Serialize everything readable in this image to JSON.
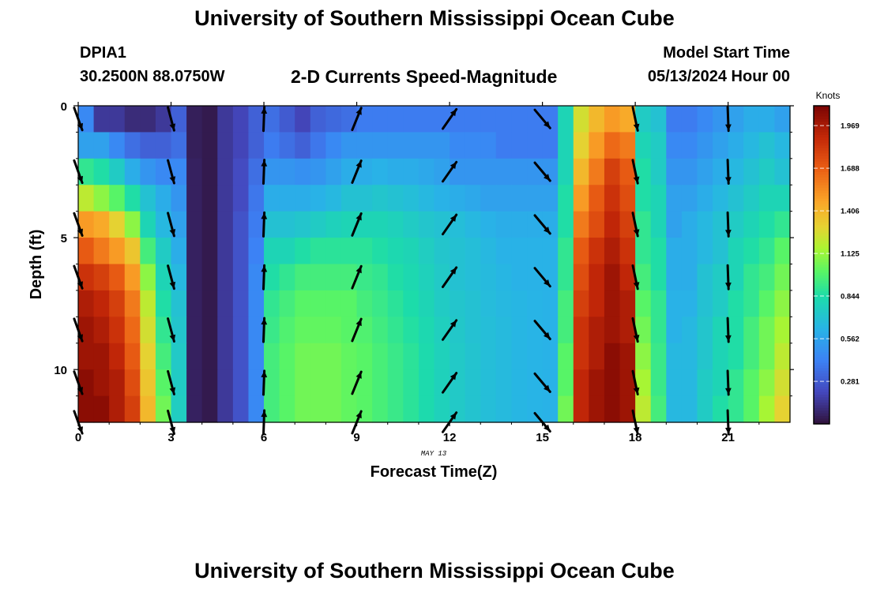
{
  "header": {
    "title": "University of Southern Mississippi Ocean Cube",
    "station": "DPIA1",
    "coords": "30.2500N  88.0750W",
    "plot_title": "2-D Currents Speed-Magnitude",
    "model_start_label": "Model Start Time",
    "model_start": "05/13/2024 Hour 00",
    "footer_title": "University of Southern Mississippi Ocean Cube"
  },
  "chart_data": {
    "type": "heatmap",
    "xlabel": "Forecast Time(Z)",
    "ylabel": "Depth (ft)",
    "date_label": "MAY 13",
    "colorbar_label": "Knots",
    "x_ticks": [
      0,
      3,
      6,
      9,
      12,
      15,
      18,
      21
    ],
    "y_ticks": [
      0,
      5,
      10
    ],
    "xlim": [
      0,
      23
    ],
    "ylim": [
      12,
      0
    ],
    "colorbar_ticks": [
      "0.281",
      "0.562",
      "0.844",
      "1.125",
      "1.406",
      "1.688",
      "1.969"
    ],
    "colorbar_range": [
      0,
      2.1
    ],
    "hours": [
      0,
      0.5,
      1,
      1.5,
      2,
      2.5,
      3,
      3.5,
      4,
      4.5,
      5,
      5.5,
      6,
      6.5,
      7,
      7.5,
      8,
      8.5,
      9,
      9.5,
      10,
      10.5,
      11,
      11.5,
      12,
      12.5,
      13,
      13.5,
      14,
      14.5,
      15,
      15.5,
      16,
      16.5,
      17,
      17.5,
      18,
      18.5,
      19,
      19.5,
      20,
      20.5,
      21,
      21.5,
      22,
      22.5
    ],
    "depths": [
      0,
      1,
      2,
      3,
      4,
      5,
      6,
      7,
      8,
      9,
      10,
      11,
      12
    ],
    "speed": [
      [
        0.45,
        0.15,
        0.15,
        0.1,
        0.1,
        0.15,
        0.3,
        0.05,
        0.03,
        0.15,
        0.2,
        0.3,
        0.35,
        0.28,
        0.2,
        0.3,
        0.33,
        0.35,
        0.4,
        0.4,
        0.4,
        0.4,
        0.4,
        0.4,
        0.4,
        0.4,
        0.4,
        0.4,
        0.4,
        0.4,
        0.4,
        0.8,
        1.25,
        1.4,
        1.5,
        1.45,
        0.75,
        0.7,
        0.4,
        0.4,
        0.45,
        0.5,
        0.55,
        0.6,
        0.6,
        0.55
      ],
      [
        0.55,
        0.55,
        0.45,
        0.35,
        0.3,
        0.3,
        0.35,
        0.05,
        0.03,
        0.15,
        0.2,
        0.3,
        0.4,
        0.35,
        0.3,
        0.38,
        0.45,
        0.5,
        0.5,
        0.5,
        0.5,
        0.5,
        0.5,
        0.5,
        0.45,
        0.45,
        0.45,
        0.4,
        0.4,
        0.4,
        0.4,
        0.8,
        1.3,
        1.5,
        1.65,
        1.6,
        0.8,
        0.75,
        0.45,
        0.45,
        0.5,
        0.55,
        0.6,
        0.65,
        0.7,
        0.65
      ],
      [
        0.9,
        0.85,
        0.75,
        0.6,
        0.5,
        0.45,
        0.45,
        0.06,
        0.03,
        0.15,
        0.22,
        0.35,
        0.5,
        0.5,
        0.48,
        0.5,
        0.55,
        0.6,
        0.6,
        0.62,
        0.6,
        0.6,
        0.58,
        0.55,
        0.5,
        0.5,
        0.5,
        0.5,
        0.5,
        0.5,
        0.5,
        0.8,
        1.4,
        1.6,
        1.8,
        1.7,
        0.85,
        0.75,
        0.5,
        0.5,
        0.55,
        0.6,
        0.65,
        0.7,
        0.75,
        0.7
      ],
      [
        1.2,
        1.1,
        1.0,
        0.85,
        0.7,
        0.6,
        0.5,
        0.06,
        0.03,
        0.15,
        0.22,
        0.38,
        0.6,
        0.6,
        0.6,
        0.62,
        0.65,
        0.7,
        0.7,
        0.72,
        0.7,
        0.68,
        0.65,
        0.62,
        0.6,
        0.58,
        0.55,
        0.55,
        0.55,
        0.55,
        0.55,
        0.85,
        1.5,
        1.7,
        1.85,
        1.75,
        0.85,
        0.8,
        0.55,
        0.55,
        0.6,
        0.65,
        0.7,
        0.75,
        0.8,
        0.8
      ],
      [
        1.5,
        1.45,
        1.3,
        1.1,
        0.8,
        0.65,
        0.55,
        0.06,
        0.03,
        0.15,
        0.25,
        0.4,
        0.7,
        0.7,
        0.72,
        0.75,
        0.78,
        0.8,
        0.8,
        0.8,
        0.78,
        0.75,
        0.72,
        0.7,
        0.68,
        0.65,
        0.62,
        0.6,
        0.6,
        0.6,
        0.6,
        0.85,
        1.6,
        1.75,
        1.9,
        1.8,
        0.9,
        0.8,
        0.55,
        0.6,
        0.65,
        0.7,
        0.75,
        0.8,
        0.85,
        0.9
      ],
      [
        1.7,
        1.6,
        1.5,
        1.35,
        0.95,
        0.75,
        0.6,
        0.06,
        0.03,
        0.15,
        0.25,
        0.42,
        0.8,
        0.8,
        0.85,
        0.88,
        0.88,
        0.88,
        0.88,
        0.85,
        0.82,
        0.8,
        0.76,
        0.72,
        0.7,
        0.68,
        0.65,
        0.62,
        0.62,
        0.62,
        0.62,
        0.9,
        1.7,
        1.85,
        1.95,
        1.85,
        0.9,
        0.85,
        0.6,
        0.6,
        0.65,
        0.7,
        0.8,
        0.85,
        0.9,
        1.0
      ],
      [
        1.85,
        1.8,
        1.7,
        1.5,
        1.1,
        0.8,
        0.65,
        0.06,
        0.03,
        0.15,
        0.25,
        0.45,
        0.85,
        0.9,
        0.95,
        0.95,
        0.95,
        0.95,
        0.92,
        0.9,
        0.85,
        0.82,
        0.78,
        0.74,
        0.7,
        0.68,
        0.66,
        0.64,
        0.62,
        0.62,
        0.62,
        0.9,
        1.75,
        1.9,
        2.0,
        1.9,
        0.95,
        0.85,
        0.6,
        0.6,
        0.7,
        0.75,
        0.8,
        0.9,
        0.95,
        1.05
      ],
      [
        1.95,
        1.9,
        1.8,
        1.6,
        1.2,
        0.85,
        0.7,
        0.06,
        0.03,
        0.15,
        0.25,
        0.45,
        0.9,
        0.95,
        1.0,
        1.0,
        1.0,
        1.0,
        0.95,
        0.92,
        0.88,
        0.84,
        0.8,
        0.75,
        0.72,
        0.7,
        0.67,
        0.65,
        0.64,
        0.63,
        0.62,
        0.95,
        1.8,
        1.9,
        2.0,
        1.95,
        1.0,
        0.9,
        0.62,
        0.62,
        0.7,
        0.75,
        0.85,
        0.9,
        1.0,
        1.1
      ],
      [
        2.0,
        1.95,
        1.85,
        1.65,
        1.25,
        0.9,
        0.72,
        0.06,
        0.03,
        0.15,
        0.25,
        0.45,
        0.92,
        0.98,
        1.02,
        1.02,
        1.02,
        1.0,
        0.98,
        0.94,
        0.9,
        0.86,
        0.82,
        0.77,
        0.73,
        0.7,
        0.68,
        0.66,
        0.64,
        0.63,
        0.62,
        0.95,
        1.85,
        1.95,
        2.0,
        1.95,
        1.05,
        0.9,
        0.62,
        0.65,
        0.72,
        0.8,
        0.85,
        0.95,
        1.05,
        1.15
      ],
      [
        2.0,
        2.0,
        1.9,
        1.7,
        1.3,
        0.95,
        0.74,
        0.06,
        0.03,
        0.15,
        0.25,
        0.45,
        0.95,
        1.0,
        1.05,
        1.05,
        1.05,
        1.02,
        1.0,
        0.96,
        0.92,
        0.88,
        0.83,
        0.78,
        0.74,
        0.71,
        0.68,
        0.66,
        0.64,
        0.63,
        0.62,
        1.0,
        1.85,
        1.95,
        2.05,
        2.0,
        1.1,
        0.92,
        0.65,
        0.65,
        0.72,
        0.8,
        0.85,
        0.95,
        1.05,
        1.2
      ],
      [
        2.05,
        2.0,
        1.95,
        1.75,
        1.35,
        1.0,
        0.75,
        0.06,
        0.03,
        0.15,
        0.25,
        0.45,
        0.95,
        1.0,
        1.05,
        1.05,
        1.05,
        1.02,
        1.0,
        0.96,
        0.92,
        0.88,
        0.83,
        0.78,
        0.74,
        0.71,
        0.68,
        0.66,
        0.64,
        0.63,
        0.62,
        1.0,
        1.9,
        2.0,
        2.05,
        2.0,
        1.15,
        0.92,
        0.65,
        0.65,
        0.75,
        0.8,
        0.9,
        1.0,
        1.1,
        1.25
      ],
      [
        2.05,
        2.05,
        1.95,
        1.8,
        1.4,
        1.05,
        0.76,
        0.06,
        0.03,
        0.15,
        0.25,
        0.45,
        0.95,
        1.0,
        1.05,
        1.05,
        1.05,
        1.02,
        1.0,
        0.96,
        0.92,
        0.88,
        0.83,
        0.78,
        0.74,
        0.71,
        0.68,
        0.66,
        0.64,
        0.63,
        0.62,
        1.05,
        1.9,
        2.0,
        2.05,
        2.0,
        1.2,
        0.95,
        0.65,
        0.65,
        0.75,
        0.85,
        0.9,
        1.0,
        1.15,
        1.3
      ]
    ],
    "vector_times": [
      0,
      3,
      6,
      9,
      12,
      15,
      18,
      21
    ],
    "vector_depths": [
      0.5,
      2.5,
      4.5,
      6.5,
      8.5,
      10.5,
      12
    ],
    "vector_directions_deg": [
      160,
      165,
      2,
      22,
      35,
      140,
      168,
      178
    ]
  }
}
